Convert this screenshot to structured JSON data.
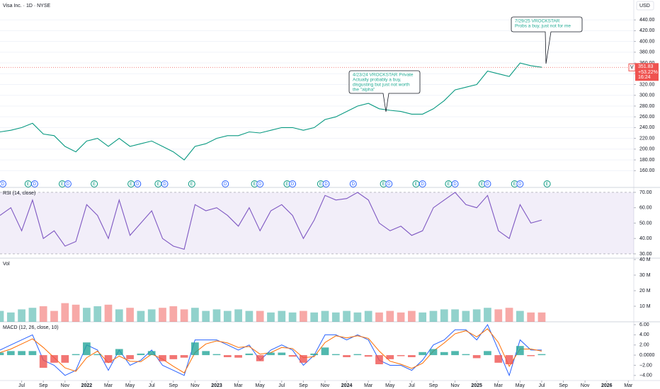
{
  "chart_data": [
    {
      "type": "line",
      "title": "Visa Inc. · 1D · NYSE",
      "currency": "USD",
      "color": "#089981",
      "grid": true,
      "xlim": [
        0,
        58.5
      ],
      "ylim": [
        142,
        477
      ],
      "x": [
        0,
        1,
        2,
        3,
        4,
        5,
        6,
        7,
        8,
        9,
        10,
        11,
        12,
        13,
        14,
        15,
        16,
        17,
        18,
        19,
        20,
        21,
        22,
        23,
        24,
        25,
        26,
        27,
        28,
        29,
        30,
        31,
        32,
        33,
        34,
        35,
        36,
        37,
        38,
        39,
        40,
        41,
        42,
        43,
        44,
        45,
        46,
        47,
        48,
        49,
        50
      ],
      "values": [
        232,
        235,
        240,
        248,
        228,
        225,
        205,
        195,
        215,
        220,
        205,
        220,
        205,
        210,
        215,
        205,
        195,
        180,
        205,
        210,
        220,
        225,
        225,
        232,
        230,
        235,
        240,
        240,
        235,
        240,
        255,
        260,
        270,
        280,
        285,
        275,
        272,
        270,
        265,
        265,
        275,
        290,
        310,
        315,
        320,
        345,
        340,
        335,
        360,
        355,
        352
      ],
      "yticks": [
        {
          "value": 160,
          "label": "160.00"
        },
        {
          "value": 180,
          "label": "180.00"
        },
        {
          "value": 200,
          "label": "200.00"
        },
        {
          "value": 220,
          "label": "220.00"
        },
        {
          "value": 240,
          "label": "240.00"
        },
        {
          "value": 260,
          "label": "260.00"
        },
        {
          "value": 280,
          "label": "280.00"
        },
        {
          "value": 300,
          "label": "300.00"
        },
        {
          "value": 320,
          "label": "320.00"
        },
        {
          "value": 340,
          "label": "340.00"
        },
        {
          "value": 360,
          "label": "360.00"
        },
        {
          "value": 380,
          "label": "380.00"
        },
        {
          "value": 400,
          "label": "400.00"
        },
        {
          "value": 420,
          "label": "420.00"
        },
        {
          "value": 440,
          "label": "440.00"
        }
      ],
      "last_price": {
        "value": 351.83,
        "label": "351.83"
      },
      "symbol": "V",
      "change_label": "+53.22%",
      "time_label": "16:24",
      "annotations": [
        {
          "lines": [
            "4/23/24 VROCKSTAR Private",
            "Actually probably a buy,",
            "disgusting but just not worth",
            "the \"alpha\""
          ]
        },
        {
          "lines": [
            "7/29/25 VROCKSTAR",
            "Probs a buy, just not for me"
          ]
        }
      ],
      "events": [
        {
          "x": 0.26,
          "label": "D"
        },
        {
          "x": 2.6,
          "label": "E"
        },
        {
          "x": 3.2,
          "label": "D"
        },
        {
          "x": 5.75,
          "label": "E"
        },
        {
          "x": 6.27,
          "label": "D"
        },
        {
          "x": 8.7,
          "label": "E"
        },
        {
          "x": 12.1,
          "label": "E"
        },
        {
          "x": 12.7,
          "label": "D"
        },
        {
          "x": 14.6,
          "label": "E"
        },
        {
          "x": 15.2,
          "label": "D"
        },
        {
          "x": 17.7,
          "label": "E"
        },
        {
          "x": 20.8,
          "label": "D"
        },
        {
          "x": 23.5,
          "label": "E"
        },
        {
          "x": 24.0,
          "label": "D"
        },
        {
          "x": 26.5,
          "label": "E"
        },
        {
          "x": 27.0,
          "label": "D"
        },
        {
          "x": 29.6,
          "label": "E"
        },
        {
          "x": 30.1,
          "label": "D"
        },
        {
          "x": 32.6,
          "label": "D"
        },
        {
          "x": 35.4,
          "label": "E"
        },
        {
          "x": 35.9,
          "label": "D"
        },
        {
          "x": 38.4,
          "label": "E"
        },
        {
          "x": 39.0,
          "label": "D"
        },
        {
          "x": 41.4,
          "label": "E"
        },
        {
          "x": 42.0,
          "label": "D"
        },
        {
          "x": 44.5,
          "label": "E"
        },
        {
          "x": 45.0,
          "label": "D"
        },
        {
          "x": 47.5,
          "label": "E"
        },
        {
          "x": 48.0,
          "label": "D"
        },
        {
          "x": 50.5,
          "label": "E"
        }
      ]
    },
    {
      "type": "line",
      "title": "RSI (14, close)",
      "color": "#7e57c2",
      "band": [
        30,
        70
      ],
      "xlim": [
        0,
        58.5
      ],
      "ylim": [
        27.2,
        73.2
      ],
      "x": [
        0,
        1,
        2,
        3,
        4,
        5,
        6,
        7,
        8,
        9,
        10,
        11,
        12,
        13,
        14,
        15,
        16,
        17,
        18,
        19,
        20,
        21,
        22,
        23,
        24,
        25,
        26,
        27,
        28,
        29,
        30,
        31,
        32,
        33,
        34,
        35,
        36,
        37,
        38,
        39,
        40,
        41,
        42,
        43,
        44,
        45,
        46,
        47,
        48,
        49,
        50
      ],
      "values": [
        55,
        60,
        45,
        65,
        40,
        45,
        35,
        38,
        62,
        55,
        40,
        65,
        42,
        50,
        58,
        40,
        35,
        33,
        62,
        58,
        60,
        55,
        48,
        60,
        45,
        58,
        62,
        55,
        40,
        52,
        68,
        65,
        66,
        70,
        65,
        50,
        45,
        48,
        42,
        45,
        60,
        65,
        70,
        62,
        60,
        68,
        45,
        40,
        62,
        50,
        52
      ],
      "yticks": [
        {
          "value": 30,
          "label": "30.00"
        },
        {
          "value": 40,
          "label": "40.00"
        },
        {
          "value": 50,
          "label": "50.00"
        },
        {
          "value": 60,
          "label": "60.00"
        },
        {
          "value": 70,
          "label": "70.00"
        }
      ]
    },
    {
      "type": "bar",
      "title": "Vol",
      "up_color": "#26a69a",
      "down_color": "#ef5350",
      "xlim": [
        0,
        58.5
      ],
      "ylim": [
        0,
        40900000
      ],
      "x": [
        0,
        1,
        2,
        3,
        4,
        5,
        6,
        7,
        8,
        9,
        10,
        11,
        12,
        13,
        14,
        15,
        16,
        17,
        18,
        19,
        20,
        21,
        22,
        23,
        24,
        25,
        26,
        27,
        28,
        29,
        30,
        31,
        32,
        33,
        34,
        35,
        36,
        37,
        38,
        39,
        40,
        41,
        42,
        43,
        44,
        45,
        46,
        47,
        48,
        49,
        50
      ],
      "values": [
        7000000,
        6000000,
        8000000,
        9000000,
        10000000,
        7000000,
        12000000,
        11000000,
        9000000,
        10000000,
        11000000,
        8000000,
        9000000,
        7000000,
        8000000,
        9000000,
        10000000,
        8000000,
        9000000,
        7000000,
        8000000,
        7000000,
        8000000,
        7000000,
        7000000,
        6000000,
        7000000,
        6000000,
        7000000,
        6000000,
        7000000,
        6000000,
        7000000,
        6000000,
        7000000,
        6000000,
        7000000,
        6000000,
        7000000,
        6000000,
        7000000,
        8000000,
        8000000,
        7000000,
        8000000,
        9000000,
        8000000,
        9000000,
        7000000,
        6000000,
        6000000
      ],
      "yticks": [
        {
          "value": 10000000,
          "label": "10 M"
        },
        {
          "value": 20000000,
          "label": "20 M"
        },
        {
          "value": 30000000,
          "label": "30 M"
        },
        {
          "value": 40000000,
          "label": "40 M"
        }
      ]
    },
    {
      "type": "macd",
      "title": "MACD (12, 26, close, 10)",
      "xlim": [
        0,
        58.5
      ],
      "ylim": [
        -5,
        6.56
      ],
      "x": [
        0,
        1,
        2,
        3,
        4,
        5,
        6,
        7,
        8,
        9,
        10,
        11,
        12,
        13,
        14,
        15,
        16,
        17,
        18,
        19,
        20,
        21,
        22,
        23,
        24,
        25,
        26,
        27,
        28,
        29,
        30,
        31,
        32,
        33,
        34,
        35,
        36,
        37,
        38,
        39,
        40,
        41,
        42,
        43,
        44,
        45,
        46,
        47,
        48,
        49,
        50
      ],
      "series": [
        {
          "type": "line",
          "color": "#2962ff",
          "values": [
            1,
            2,
            3,
            4,
            -1,
            -2,
            -4,
            -3,
            2,
            1,
            -3,
            1,
            -2,
            -1,
            1,
            -2,
            -3,
            -4,
            3,
            3,
            3,
            2,
            1,
            2,
            -1,
            1,
            2,
            1,
            -2,
            0,
            4,
            4,
            3,
            4,
            3,
            -1,
            -2,
            -2,
            -3,
            -1,
            2,
            3,
            5,
            5,
            3,
            6,
            1,
            -4,
            3,
            1,
            1
          ]
        },
        {
          "type": "line",
          "color": "#ff6d00",
          "values": [
            0.5,
            1.2,
            2.2,
            3.2,
            1.5,
            -0.5,
            -2.5,
            -3.2,
            -0.5,
            0.8,
            -1.5,
            -0.2,
            -1.2,
            -1.3,
            0.2,
            -0.8,
            -2.2,
            -3.5,
            0.5,
            2.2,
            2.8,
            2.4,
            1.5,
            1.7,
            0.2,
            0.5,
            1.5,
            1.3,
            -0.5,
            -0.3,
            2.5,
            3.8,
            3.4,
            3.8,
            3.3,
            0.8,
            -1.2,
            -1.8,
            -2.6,
            -1.6,
            0.8,
            2.4,
            4.2,
            4.8,
            3.6,
            5.2,
            2.5,
            -2.2,
            1.2,
            1.2,
            0.8
          ]
        },
        {
          "type": "bar",
          "color": "#26a69a",
          "negative_color": "#ef5350",
          "values": [
            0.5,
            0.8,
            0.8,
            0.8,
            -2.5,
            -1.5,
            -1.5,
            0.2,
            2.5,
            0.2,
            -1.5,
            1.2,
            -0.8,
            0.3,
            0.8,
            -1.2,
            -0.8,
            -0.5,
            2.5,
            0.8,
            0.2,
            -0.4,
            -0.5,
            0.3,
            -1.2,
            0.5,
            0.5,
            -0.3,
            -1.5,
            0.3,
            1.5,
            0.2,
            -0.4,
            0.2,
            -0.3,
            -1.8,
            -0.8,
            -0.2,
            -0.4,
            0.6,
            1.2,
            0.6,
            0.8,
            0.2,
            -0.6,
            0.8,
            -1.5,
            -1.8,
            1.8,
            -0.2,
            0.2
          ]
        }
      ],
      "yticks": [
        {
          "value": 6,
          "label": "6.00"
        },
        {
          "value": 4,
          "label": "4.00"
        },
        {
          "value": 2,
          "label": "2.00"
        },
        {
          "value": 0,
          "label": "0.0000"
        },
        {
          "value": -2,
          "label": "−2.00"
        },
        {
          "value": -4,
          "label": "−4.00"
        }
      ],
      "xticks": [
        {
          "value": 2,
          "label": "Jul"
        },
        {
          "value": 4,
          "label": "Sep"
        },
        {
          "value": 6,
          "label": "Nov"
        },
        {
          "value": 8,
          "label": "2022"
        },
        {
          "value": 10,
          "label": "Mar"
        },
        {
          "value": 12,
          "label": "May"
        },
        {
          "value": 14,
          "label": "Jul"
        },
        {
          "value": 16,
          "label": "Sep"
        },
        {
          "value": 18,
          "label": "Nov"
        },
        {
          "value": 20,
          "label": "2023"
        },
        {
          "value": 22,
          "label": "Mar"
        },
        {
          "value": 24,
          "label": "May"
        },
        {
          "value": 26,
          "label": "Jul"
        },
        {
          "value": 28,
          "label": "Sep"
        },
        {
          "value": 30,
          "label": "Nov"
        },
        {
          "value": 32,
          "label": "2024"
        },
        {
          "value": 34,
          "label": "Mar"
        },
        {
          "value": 36,
          "label": "May"
        },
        {
          "value": 38,
          "label": "Jul"
        },
        {
          "value": 40,
          "label": "Sep"
        },
        {
          "value": 42,
          "label": "Nov"
        },
        {
          "value": 44,
          "label": "2025"
        },
        {
          "value": 46,
          "label": "Mar"
        },
        {
          "value": 48,
          "label": "May"
        },
        {
          "value": 50,
          "label": "Jul"
        },
        {
          "value": 52,
          "label": "Sep"
        },
        {
          "value": 54,
          "label": "Nov"
        },
        {
          "value": 56,
          "label": "2026"
        },
        {
          "value": 58,
          "label": "Mar"
        }
      ]
    }
  ]
}
